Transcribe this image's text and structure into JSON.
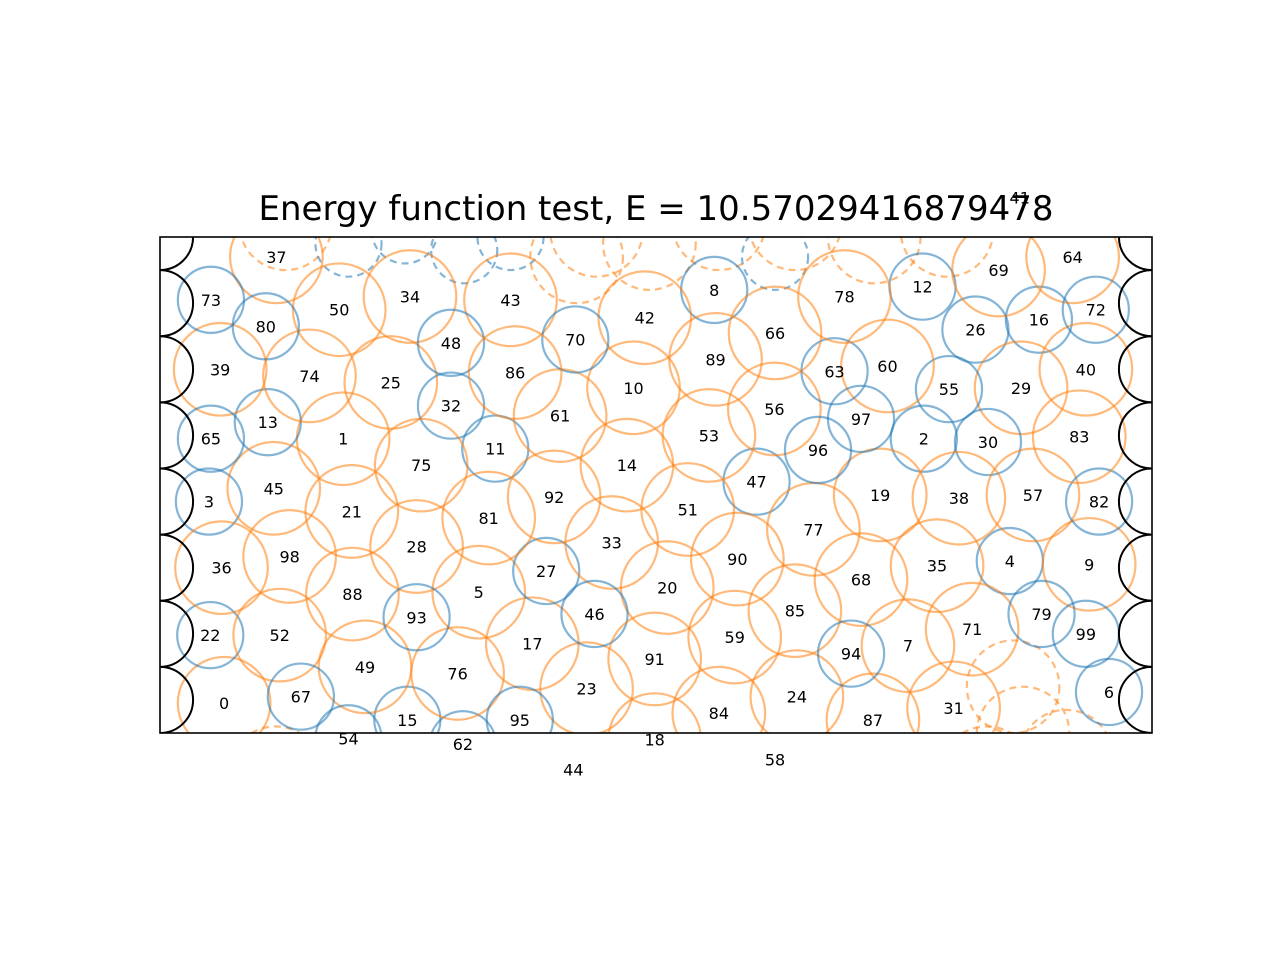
{
  "chart_data": {
    "type": "scatter",
    "title": "Energy function test, E = 10.57029416879478",
    "xlim": [
      0,
      15
    ],
    "ylim": [
      0,
      7.5
    ],
    "grid": false,
    "axes_visible": false,
    "boundary_arcs": {
      "left_wall_x": 0,
      "right_wall_x": 15,
      "radius": 0.5,
      "centers_y": [
        0.5,
        1.5,
        2.5,
        3.5,
        4.5,
        5.5,
        6.5,
        7.5
      ]
    },
    "styles": {
      "large": {
        "radius": 0.7,
        "color": "#ff7f0e"
      },
      "small": {
        "radius": 0.5,
        "color": "#1f77b4"
      }
    },
    "circles": [
      {
        "id": 0,
        "x": 0.97,
        "y": 0.45,
        "size": "large"
      },
      {
        "id": 1,
        "x": 2.77,
        "y": 4.45,
        "size": "large"
      },
      {
        "id": 2,
        "x": 11.55,
        "y": 4.45,
        "size": "small"
      },
      {
        "id": 3,
        "x": 0.74,
        "y": 3.5,
        "size": "small"
      },
      {
        "id": 4,
        "x": 12.85,
        "y": 2.6,
        "size": "small"
      },
      {
        "id": 5,
        "x": 4.82,
        "y": 2.13,
        "size": "large"
      },
      {
        "id": 6,
        "x": 14.35,
        "y": 0.62,
        "size": "small"
      },
      {
        "id": 7,
        "x": 11.31,
        "y": 1.32,
        "size": "large"
      },
      {
        "id": 8,
        "x": 8.38,
        "y": 6.7,
        "size": "small"
      },
      {
        "id": 9,
        "x": 14.05,
        "y": 2.55,
        "size": "large"
      },
      {
        "id": 10,
        "x": 7.16,
        "y": 5.22,
        "size": "large"
      },
      {
        "id": 11,
        "x": 5.07,
        "y": 4.3,
        "size": "small"
      },
      {
        "id": 12,
        "x": 11.53,
        "y": 6.75,
        "size": "small"
      },
      {
        "id": 13,
        "x": 1.63,
        "y": 4.7,
        "size": "small"
      },
      {
        "id": 14,
        "x": 7.06,
        "y": 4.05,
        "size": "large"
      },
      {
        "id": 15,
        "x": 3.74,
        "y": 0.2,
        "size": "small"
      },
      {
        "id": 16,
        "x": 13.29,
        "y": 6.25,
        "size": "small"
      },
      {
        "id": 17,
        "x": 5.63,
        "y": 1.35,
        "size": "large"
      },
      {
        "id": 18,
        "x": 7.48,
        "y": -0.1,
        "size": "large"
      },
      {
        "id": 19,
        "x": 10.89,
        "y": 3.6,
        "size": "large"
      },
      {
        "id": 20,
        "x": 7.67,
        "y": 2.2,
        "size": "large"
      },
      {
        "id": 21,
        "x": 2.9,
        "y": 3.35,
        "size": "large"
      },
      {
        "id": 22,
        "x": 0.76,
        "y": 1.48,
        "size": "small"
      },
      {
        "id": 23,
        "x": 6.45,
        "y": 0.67,
        "size": "large"
      },
      {
        "id": 24,
        "x": 9.63,
        "y": 0.55,
        "size": "large"
      },
      {
        "id": 25,
        "x": 3.49,
        "y": 5.3,
        "size": "large"
      },
      {
        "id": 26,
        "x": 12.33,
        "y": 6.1,
        "size": "small"
      },
      {
        "id": 27,
        "x": 5.84,
        "y": 2.45,
        "size": "small"
      },
      {
        "id": 28,
        "x": 3.88,
        "y": 2.82,
        "size": "large"
      },
      {
        "id": 29,
        "x": 13.02,
        "y": 5.22,
        "size": "large"
      },
      {
        "id": 30,
        "x": 12.52,
        "y": 4.4,
        "size": "small"
      },
      {
        "id": 31,
        "x": 12.0,
        "y": 0.38,
        "size": "large"
      },
      {
        "id": 32,
        "x": 4.4,
        "y": 4.95,
        "size": "small"
      },
      {
        "id": 33,
        "x": 6.83,
        "y": 2.88,
        "size": "large"
      },
      {
        "id": 34,
        "x": 3.78,
        "y": 6.6,
        "size": "large"
      },
      {
        "id": 35,
        "x": 11.75,
        "y": 2.53,
        "size": "large"
      },
      {
        "id": 36,
        "x": 0.93,
        "y": 2.5,
        "size": "large"
      },
      {
        "id": 37,
        "x": 1.76,
        "y": 7.2,
        "size": "large"
      },
      {
        "id": 38,
        "x": 12.08,
        "y": 3.55,
        "size": "large"
      },
      {
        "id": 39,
        "x": 0.91,
        "y": 5.5,
        "size": "large"
      },
      {
        "id": 40,
        "x": 14.0,
        "y": 5.5,
        "size": "large"
      },
      {
        "id": 42,
        "x": 7.33,
        "y": 6.28,
        "size": "large"
      },
      {
        "id": 43,
        "x": 5.3,
        "y": 6.55,
        "size": "large"
      },
      {
        "id": 44,
        "x": 6.25,
        "y": -0.55,
        "size": "large"
      },
      {
        "id": 45,
        "x": 1.72,
        "y": 3.7,
        "size": "large"
      },
      {
        "id": 46,
        "x": 6.57,
        "y": 1.8,
        "size": "small"
      },
      {
        "id": 47,
        "x": 9.02,
        "y": 3.8,
        "size": "small"
      },
      {
        "id": 48,
        "x": 4.4,
        "y": 5.9,
        "size": "small"
      },
      {
        "id": 49,
        "x": 3.1,
        "y": 1.0,
        "size": "large"
      },
      {
        "id": 50,
        "x": 2.71,
        "y": 6.4,
        "size": "large"
      },
      {
        "id": 51,
        "x": 7.98,
        "y": 3.38,
        "size": "large"
      },
      {
        "id": 52,
        "x": 1.81,
        "y": 1.48,
        "size": "large"
      },
      {
        "id": 53,
        "x": 8.3,
        "y": 4.5,
        "size": "large"
      },
      {
        "id": 54,
        "x": 2.85,
        "y": -0.08,
        "size": "small"
      },
      {
        "id": 55,
        "x": 11.93,
        "y": 5.2,
        "size": "small"
      },
      {
        "id": 56,
        "x": 9.29,
        "y": 4.9,
        "size": "large"
      },
      {
        "id": 57,
        "x": 13.2,
        "y": 3.6,
        "size": "large"
      },
      {
        "id": 58,
        "x": 9.3,
        "y": -0.4,
        "size": "small"
      },
      {
        "id": 59,
        "x": 8.69,
        "y": 1.45,
        "size": "large"
      },
      {
        "id": 60,
        "x": 11.0,
        "y": 5.55,
        "size": "large"
      },
      {
        "id": 61,
        "x": 6.05,
        "y": 4.8,
        "size": "large"
      },
      {
        "id": 62,
        "x": 4.58,
        "y": -0.17,
        "size": "small"
      },
      {
        "id": 63,
        "x": 10.2,
        "y": 5.47,
        "size": "small"
      },
      {
        "id": 64,
        "x": 13.8,
        "y": 7.2,
        "size": "large"
      },
      {
        "id": 65,
        "x": 0.77,
        "y": 4.45,
        "size": "small"
      },
      {
        "id": 66,
        "x": 9.3,
        "y": 6.05,
        "size": "large"
      },
      {
        "id": 67,
        "x": 2.13,
        "y": 0.55,
        "size": "small"
      },
      {
        "id": 68,
        "x": 10.6,
        "y": 2.32,
        "size": "large"
      },
      {
        "id": 69,
        "x": 12.68,
        "y": 7.0,
        "size": "large"
      },
      {
        "id": 70,
        "x": 6.28,
        "y": 5.95,
        "size": "small"
      },
      {
        "id": 71,
        "x": 12.28,
        "y": 1.57,
        "size": "large"
      },
      {
        "id": 72,
        "x": 14.15,
        "y": 6.4,
        "size": "small"
      },
      {
        "id": 73,
        "x": 0.77,
        "y": 6.55,
        "size": "small"
      },
      {
        "id": 74,
        "x": 2.26,
        "y": 5.4,
        "size": "large"
      },
      {
        "id": 75,
        "x": 3.95,
        "y": 4.05,
        "size": "large"
      },
      {
        "id": 76,
        "x": 4.5,
        "y": 0.9,
        "size": "large"
      },
      {
        "id": 77,
        "x": 9.88,
        "y": 3.08,
        "size": "large"
      },
      {
        "id": 78,
        "x": 10.35,
        "y": 6.6,
        "size": "large"
      },
      {
        "id": 79,
        "x": 13.33,
        "y": 1.8,
        "size": "small"
      },
      {
        "id": 80,
        "x": 1.6,
        "y": 6.15,
        "size": "small"
      },
      {
        "id": 81,
        "x": 4.97,
        "y": 3.25,
        "size": "large"
      },
      {
        "id": 82,
        "x": 14.2,
        "y": 3.5,
        "size": "small"
      },
      {
        "id": 83,
        "x": 13.9,
        "y": 4.48,
        "size": "large"
      },
      {
        "id": 84,
        "x": 8.45,
        "y": 0.3,
        "size": "large"
      },
      {
        "id": 85,
        "x": 9.6,
        "y": 1.85,
        "size": "large"
      },
      {
        "id": 86,
        "x": 5.37,
        "y": 5.45,
        "size": "large"
      },
      {
        "id": 87,
        "x": 10.78,
        "y": 0.2,
        "size": "large"
      },
      {
        "id": 88,
        "x": 2.91,
        "y": 2.1,
        "size": "large"
      },
      {
        "id": 89,
        "x": 8.4,
        "y": 5.65,
        "size": "large"
      },
      {
        "id": 90,
        "x": 8.73,
        "y": 2.63,
        "size": "large"
      },
      {
        "id": 91,
        "x": 7.48,
        "y": 1.12,
        "size": "large"
      },
      {
        "id": 92,
        "x": 5.96,
        "y": 3.57,
        "size": "large"
      },
      {
        "id": 93,
        "x": 3.88,
        "y": 1.75,
        "size": "small"
      },
      {
        "id": 94,
        "x": 10.45,
        "y": 1.2,
        "size": "small"
      },
      {
        "id": 95,
        "x": 5.44,
        "y": 0.2,
        "size": "small"
      },
      {
        "id": 96,
        "x": 9.95,
        "y": 4.28,
        "size": "small"
      },
      {
        "id": 97,
        "x": 10.6,
        "y": 4.75,
        "size": "small"
      },
      {
        "id": 98,
        "x": 1.96,
        "y": 2.67,
        "size": "large"
      },
      {
        "id": 99,
        "x": 14.0,
        "y": 1.5,
        "size": "small"
      }
    ],
    "ghost_circles": [
      {
        "id": 41,
        "x": 13.0,
        "y": 8.1,
        "size": "small"
      },
      {
        "id": null,
        "x": 1.9,
        "y": 7.7,
        "size": "large"
      },
      {
        "id": null,
        "x": 2.85,
        "y": 7.4,
        "size": "small"
      },
      {
        "id": null,
        "x": 3.7,
        "y": 7.6,
        "size": "small"
      },
      {
        "id": null,
        "x": 4.6,
        "y": 7.3,
        "size": "small"
      },
      {
        "id": null,
        "x": 5.3,
        "y": 7.5,
        "size": "small"
      },
      {
        "id": null,
        "x": 6.3,
        "y": 7.2,
        "size": "large"
      },
      {
        "id": null,
        "x": 6.6,
        "y": 7.6,
        "size": "large"
      },
      {
        "id": null,
        "x": 7.4,
        "y": 7.4,
        "size": "large"
      },
      {
        "id": null,
        "x": 8.45,
        "y": 7.7,
        "size": "large"
      },
      {
        "id": null,
        "x": 9.3,
        "y": 7.2,
        "size": "small"
      },
      {
        "id": null,
        "x": 9.6,
        "y": 7.7,
        "size": "large"
      },
      {
        "id": null,
        "x": 10.8,
        "y": 7.5,
        "size": "large"
      },
      {
        "id": null,
        "x": 11.9,
        "y": 7.6,
        "size": "large"
      },
      {
        "id": null,
        "x": 1.75,
        "y": -0.6,
        "size": "large"
      },
      {
        "id": null,
        "x": 12.9,
        "y": 0.7,
        "size": "large"
      },
      {
        "id": null,
        "x": 12.5,
        "y": -0.6,
        "size": "large"
      },
      {
        "id": null,
        "x": 13.7,
        "y": -0.35,
        "size": "large"
      },
      {
        "id": null,
        "x": 13.05,
        "y": 0.0,
        "size": "large"
      }
    ],
    "label_only": [
      {
        "id": 44,
        "x": 6.25,
        "y": -0.55
      },
      {
        "id": 58,
        "x": 9.3,
        "y": -0.4
      }
    ]
  }
}
